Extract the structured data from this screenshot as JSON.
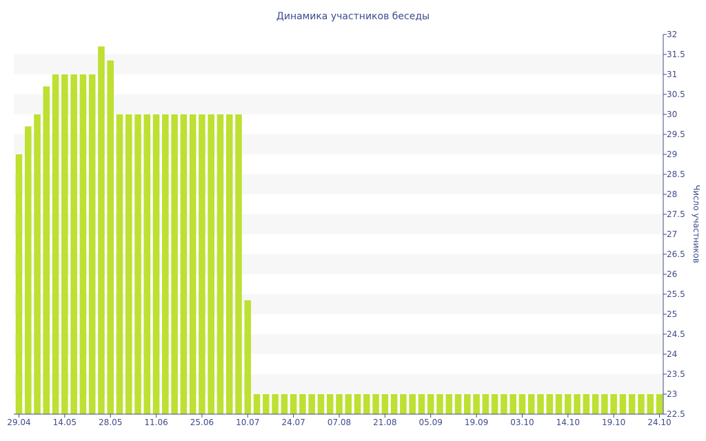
{
  "colors": {
    "bar": "#bde033",
    "band": "#f7f7f7",
    "text": "#3e4a8c",
    "axis": "#3e4a8c"
  },
  "chart_data": {
    "type": "bar",
    "title": "Динамика участников беседы",
    "xlabel": "",
    "ylabel": "Число участников",
    "y_axis_position": "right",
    "ylim": [
      22.5,
      32
    ],
    "y_ticks": [
      "22.5",
      "23",
      "23.5",
      "24",
      "24.5",
      "25",
      "25.5",
      "26",
      "26.5",
      "27",
      "27.5",
      "28",
      "28.5",
      "29",
      "29.5",
      "30",
      "30.5",
      "31",
      "31.5",
      "32"
    ],
    "x_tick_labels": [
      {
        "index": 0,
        "label": "29.04"
      },
      {
        "index": 5,
        "label": "14.05"
      },
      {
        "index": 10,
        "label": "28.05"
      },
      {
        "index": 15,
        "label": "11.06"
      },
      {
        "index": 20,
        "label": "25.06"
      },
      {
        "index": 25,
        "label": "10.07"
      },
      {
        "index": 30,
        "label": "24.07"
      },
      {
        "index": 35,
        "label": "07.08"
      },
      {
        "index": 40,
        "label": "21.08"
      },
      {
        "index": 45,
        "label": "05.09"
      },
      {
        "index": 50,
        "label": "19.09"
      },
      {
        "index": 55,
        "label": "03.10"
      },
      {
        "index": 60,
        "label": "14.10"
      },
      {
        "index": 65,
        "label": "19.10"
      },
      {
        "index": 70,
        "label": "24.10"
      }
    ],
    "values": [
      29,
      29.7,
      30,
      30.7,
      31,
      31,
      31,
      31,
      31,
      31.7,
      31.35,
      30,
      30,
      30,
      30,
      30,
      30,
      30,
      30,
      30,
      30,
      30,
      30,
      30,
      30,
      25.35,
      23,
      23,
      23,
      23,
      23,
      23,
      23,
      23,
      23,
      23,
      23,
      23,
      23,
      23,
      23,
      23,
      23,
      23,
      23,
      23,
      23,
      23,
      23,
      23,
      23,
      23,
      23,
      23,
      23,
      23,
      23,
      23,
      23,
      23,
      23,
      23,
      23,
      23,
      23,
      23,
      23,
      23,
      23,
      23,
      23
    ],
    "grid": "alternating horizontal bands",
    "legend": "none"
  }
}
